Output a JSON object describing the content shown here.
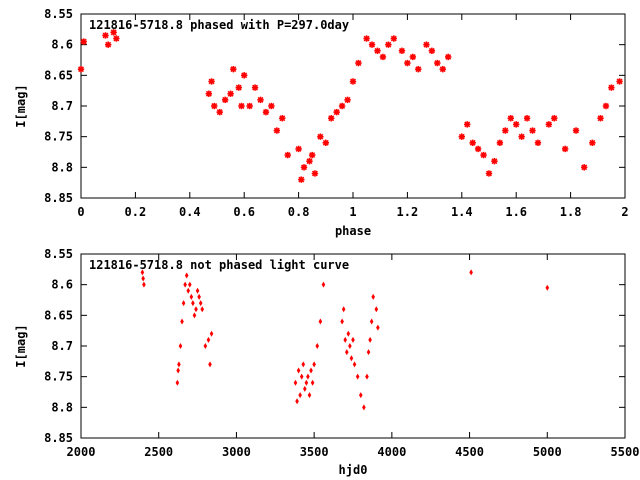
{
  "chart_data": [
    {
      "type": "scatter",
      "title": "121816-5718.8 phased with P=297.0day",
      "xlabel": "phase",
      "ylabel": "I[mag]",
      "xlim": [
        0,
        2
      ],
      "ylim": [
        8.55,
        8.85
      ],
      "y_inverted": true,
      "x_ticks": [
        0,
        0.2,
        0.4,
        0.6,
        0.8,
        1,
        1.2,
        1.4,
        1.6,
        1.8,
        2
      ],
      "x_tick_labels": [
        "0",
        "0.2",
        "0.4",
        "0.6",
        "0.8",
        "1",
        "1.2",
        "1.4",
        "1.6",
        "1.8",
        "2"
      ],
      "y_ticks": [
        8.55,
        8.6,
        8.65,
        8.7,
        8.75,
        8.8,
        8.85
      ],
      "y_tick_labels": [
        "8.55",
        "8.6",
        "8.65",
        "8.7",
        "8.75",
        "8.8",
        "8.85"
      ],
      "marker": "star",
      "color": "#ff0000",
      "grid": false,
      "x": [
        0.0,
        0.01,
        0.09,
        0.1,
        0.12,
        0.13,
        0.47,
        0.48,
        0.49,
        0.51,
        0.53,
        0.55,
        0.56,
        0.58,
        0.59,
        0.6,
        0.62,
        0.64,
        0.66,
        0.68,
        0.7,
        0.72,
        0.74,
        0.76,
        0.8,
        0.81,
        0.82,
        0.84,
        0.85,
        0.86,
        0.88,
        0.9,
        0.92,
        0.94,
        0.96,
        0.98,
        1.0,
        1.02,
        1.05,
        1.07,
        1.09,
        1.11,
        1.13,
        1.15,
        1.18,
        1.2,
        1.22,
        1.24,
        1.27,
        1.29,
        1.31,
        1.33,
        1.35,
        1.4,
        1.42,
        1.44,
        1.46,
        1.48,
        1.5,
        1.52,
        1.54,
        1.56,
        1.58,
        1.6,
        1.62,
        1.64,
        1.66,
        1.68,
        1.72,
        1.74,
        1.78,
        1.82,
        1.85,
        1.88,
        1.91,
        1.93,
        1.95,
        1.98
      ],
      "y": [
        8.64,
        8.595,
        8.585,
        8.6,
        8.58,
        8.59,
        8.68,
        8.66,
        8.7,
        8.71,
        8.69,
        8.68,
        8.64,
        8.67,
        8.7,
        8.65,
        8.7,
        8.67,
        8.69,
        8.71,
        8.7,
        8.74,
        8.72,
        8.78,
        8.77,
        8.82,
        8.8,
        8.79,
        8.78,
        8.81,
        8.75,
        8.76,
        8.72,
        8.71,
        8.7,
        8.69,
        8.66,
        8.63,
        8.59,
        8.6,
        8.61,
        8.62,
        8.6,
        8.59,
        8.61,
        8.63,
        8.62,
        8.64,
        8.6,
        8.61,
        8.63,
        8.64,
        8.62,
        8.75,
        8.73,
        8.76,
        8.77,
        8.78,
        8.81,
        8.79,
        8.76,
        8.74,
        8.72,
        8.73,
        8.75,
        8.72,
        8.74,
        8.76,
        8.73,
        8.72,
        8.77,
        8.74,
        8.8,
        8.76,
        8.72,
        8.7,
        8.67,
        8.66
      ]
    },
    {
      "type": "scatter",
      "title": "121816-5718.8 not phased light curve",
      "xlabel": "hjd0",
      "ylabel": "I[mag]",
      "xlim": [
        2000,
        5500
      ],
      "ylim": [
        8.55,
        8.85
      ],
      "y_inverted": true,
      "x_ticks": [
        2000,
        2500,
        3000,
        3500,
        4000,
        4500,
        5000,
        5500
      ],
      "x_tick_labels": [
        "2000",
        "2500",
        "3000",
        "3500",
        "4000",
        "4500",
        "5000",
        "5500"
      ],
      "y_ticks": [
        8.55,
        8.6,
        8.65,
        8.7,
        8.75,
        8.8,
        8.85
      ],
      "y_tick_labels": [
        "8.55",
        "8.6",
        "8.65",
        "8.7",
        "8.75",
        "8.8",
        "8.85"
      ],
      "marker": "diamond",
      "color": "#ff0000",
      "grid": false,
      "x": [
        2395,
        2400,
        2405,
        2620,
        2625,
        2630,
        2640,
        2650,
        2660,
        2670,
        2680,
        2690,
        2700,
        2710,
        2720,
        2730,
        2740,
        2750,
        2760,
        2770,
        2780,
        2800,
        2820,
        2830,
        2840,
        3380,
        3390,
        3400,
        3410,
        3420,
        3430,
        3440,
        3450,
        3460,
        3470,
        3480,
        3490,
        3500,
        3520,
        3540,
        3560,
        3680,
        3690,
        3700,
        3710,
        3720,
        3730,
        3740,
        3750,
        3760,
        3780,
        3800,
        3820,
        3840,
        3850,
        3860,
        3870,
        3880,
        3900,
        3910,
        4510,
        5000
      ],
      "y": [
        8.58,
        8.59,
        8.6,
        8.76,
        8.74,
        8.73,
        8.7,
        8.66,
        8.63,
        8.6,
        8.585,
        8.61,
        8.6,
        8.62,
        8.63,
        8.65,
        8.64,
        8.61,
        8.62,
        8.63,
        8.64,
        8.7,
        8.69,
        8.73,
        8.68,
        8.76,
        8.79,
        8.74,
        8.78,
        8.75,
        8.73,
        8.77,
        8.76,
        8.75,
        8.78,
        8.74,
        8.76,
        8.73,
        8.7,
        8.66,
        8.6,
        8.66,
        8.64,
        8.69,
        8.71,
        8.68,
        8.7,
        8.72,
        8.69,
        8.73,
        8.75,
        8.78,
        8.8,
        8.75,
        8.71,
        8.69,
        8.66,
        8.62,
        8.64,
        8.67,
        8.58,
        8.605
      ]
    }
  ]
}
